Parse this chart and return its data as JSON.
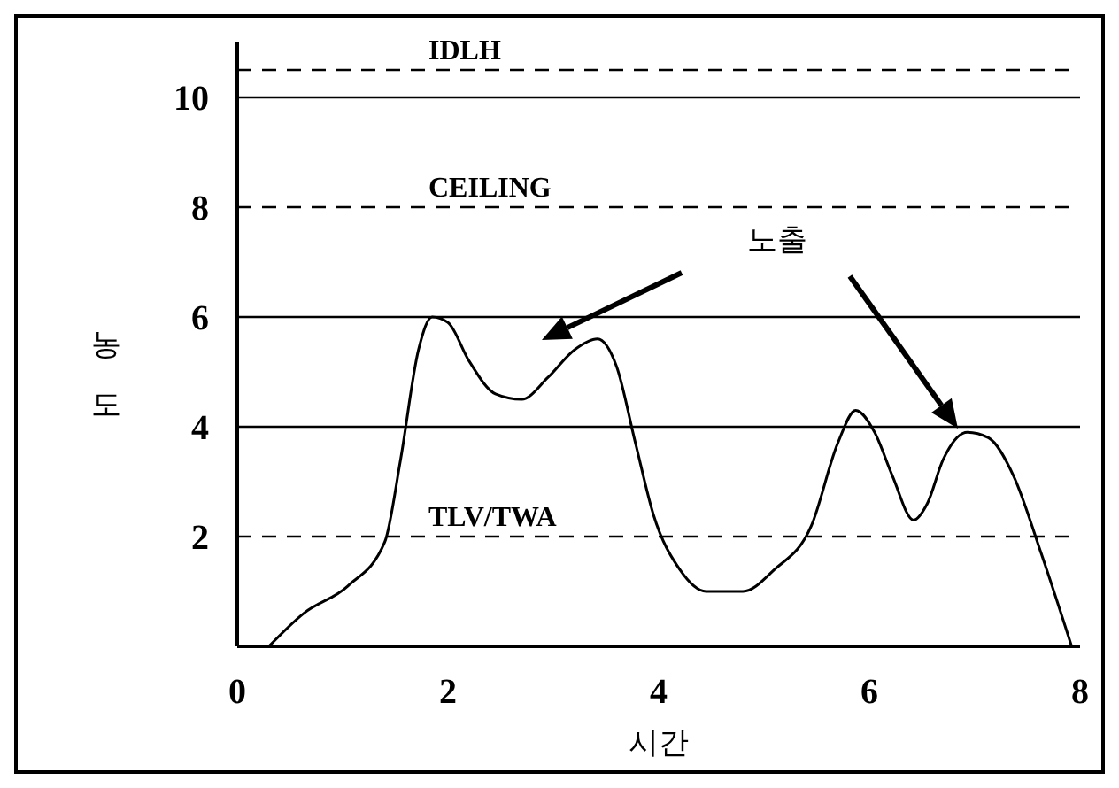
{
  "chart_data": {
    "type": "line",
    "xlabel": "시간",
    "ylabel": "농도",
    "annotations": [
      "노출"
    ],
    "x": [
      0.3,
      0.63,
      1.05,
      1.4,
      1.55,
      1.72,
      1.85,
      2.0,
      2.2,
      2.45,
      2.7,
      2.95,
      3.2,
      3.42,
      3.6,
      3.78,
      3.95,
      4.2,
      4.45,
      4.8,
      5.1,
      5.45,
      5.7,
      5.87,
      6.05,
      6.22,
      6.42,
      6.55,
      6.7,
      6.93,
      7.13,
      7.37,
      7.63,
      7.92
    ],
    "series": [
      {
        "color": "#000000",
        "values": [
          0,
          0.6,
          1.1,
          1.9,
          3.4,
          5.4,
          6.0,
          5.9,
          5.2,
          4.6,
          4.5,
          4.9,
          5.4,
          5.6,
          5.1,
          3.7,
          2.4,
          1.4,
          1.0,
          1.0,
          1.4,
          2.2,
          3.7,
          4.3,
          3.9,
          3.1,
          2.3,
          2.6,
          3.4,
          3.9,
          3.8,
          3.1,
          1.7,
          0
        ]
      }
    ],
    "xlim": [
      0,
      8
    ],
    "xticks": [
      0,
      2,
      4,
      6,
      8
    ],
    "ylim": [
      0,
      11
    ],
    "yticks": [
      2,
      4,
      6,
      8,
      10
    ],
    "ref_lines": [
      {
        "axis": "y",
        "value": 10.5,
        "label": "IDLH",
        "color": "#000000",
        "line_style": "dashed"
      },
      {
        "axis": "y",
        "value": 10,
        "label": null,
        "color": "#000000",
        "line_style": "solid"
      },
      {
        "axis": "y",
        "value": 8,
        "label": "CEILING",
        "color": "#000000",
        "line_style": "dashed"
      },
      {
        "axis": "y",
        "value": 6,
        "label": null,
        "color": "#000000",
        "line_style": "solid"
      },
      {
        "axis": "y",
        "value": 4,
        "label": null,
        "color": "#000000",
        "line_style": "solid"
      },
      {
        "axis": "y",
        "value": 2,
        "label": "TLV/TWA",
        "color": "#000000",
        "line_style": "dashed"
      }
    ],
    "grid": false,
    "legend": false,
    "marker": "none",
    "line_style": "solid"
  }
}
